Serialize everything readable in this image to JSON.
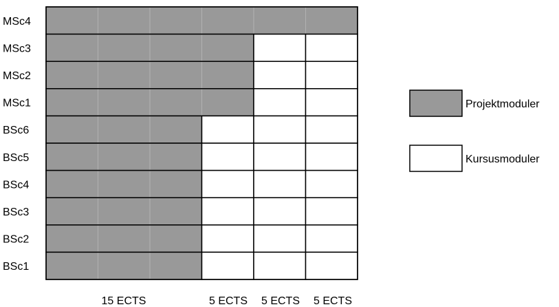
{
  "rows": [
    {
      "label": "MSc4",
      "project_units": 6
    },
    {
      "label": "MSc3",
      "project_units": 4
    },
    {
      "label": "MSc2",
      "project_units": 4
    },
    {
      "label": "MSc1",
      "project_units": 4
    },
    {
      "label": "BSc6",
      "project_units": 3
    },
    {
      "label": "BSc5",
      "project_units": 3
    },
    {
      "label": "BSc4",
      "project_units": 3
    },
    {
      "label": "BSc3",
      "project_units": 3
    },
    {
      "label": "BSc2",
      "project_units": 3
    },
    {
      "label": "BSc1",
      "project_units": 3
    }
  ],
  "total_units": 6,
  "columns": [
    "15 ECTS",
    "5 ECTS",
    "5 ECTS",
    "5 ECTS"
  ],
  "legend": [
    {
      "label": "Projektmoduler",
      "color": "#999999"
    },
    {
      "label": "Kursusmoduler",
      "color": "#ffffff"
    }
  ],
  "colors": {
    "project": "#999999",
    "course": "#ffffff",
    "border": "#000000",
    "inner_line": "#b2b2b2"
  }
}
